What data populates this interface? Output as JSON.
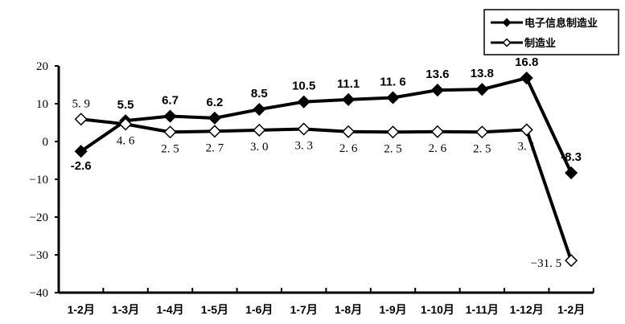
{
  "chart_data": {
    "type": "line",
    "title": "",
    "xlabel": "",
    "ylabel": "",
    "categories": [
      "1-2月",
      "1-3月",
      "1-4月",
      "1-5月",
      "1-6月",
      "1-7月",
      "1-8月",
      "1-9月",
      "1-10月",
      "1-11月",
      "1-12月",
      "1-2月"
    ],
    "ylim": [
      -40,
      20
    ],
    "yticks": [
      20,
      10,
      0,
      -10,
      -20,
      -30,
      -40
    ],
    "ytick_labels": [
      "20",
      "10",
      "0",
      "−10",
      "−20",
      "−30",
      "−40"
    ],
    "grid": false,
    "legend": "top-right",
    "series": [
      {
        "name": "电子信息制造业",
        "marker": "filled-diamond",
        "color": "#000000",
        "values": [
          -2.6,
          5.5,
          6.7,
          6.2,
          8.5,
          10.5,
          11.1,
          11.6,
          13.6,
          13.8,
          16.8,
          -8.3
        ],
        "labels": [
          "-2.6",
          "5.5",
          "6.7",
          "6.2",
          "8.5",
          "10.5",
          "11.1",
          "11. 6",
          "13.6",
          "13.8",
          "16.8",
          "-8.3"
        ]
      },
      {
        "name": "制造业",
        "marker": "hollow-diamond",
        "color": "#000000",
        "values": [
          5.9,
          4.6,
          2.5,
          2.7,
          3.0,
          3.3,
          2.6,
          2.5,
          2.6,
          2.5,
          3.1,
          -31.5
        ],
        "labels": [
          "5. 9",
          "4. 6",
          "2. 5",
          "2. 7",
          "3. 0",
          "3. 3",
          "2. 6",
          "2. 5",
          "2. 6",
          "2. 5",
          "3. 1",
          "−31. 5"
        ]
      }
    ]
  }
}
